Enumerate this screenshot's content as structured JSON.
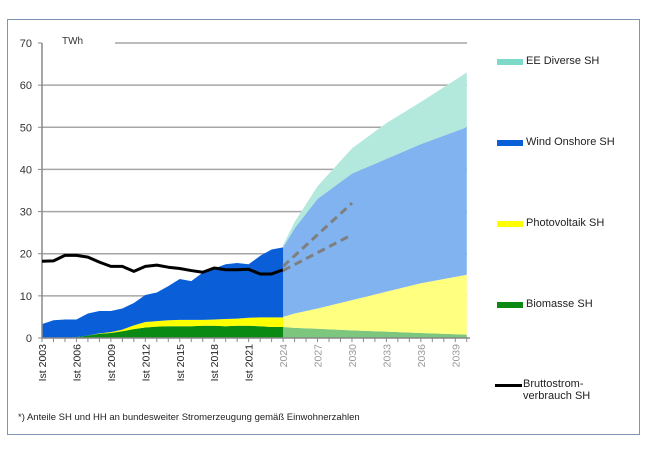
{
  "chart_data": {
    "type": "area",
    "unit_label": "TWh",
    "ylim": [
      0,
      70
    ],
    "yticks": [
      0,
      10,
      20,
      30,
      40,
      50,
      60,
      70
    ],
    "xlim": [
      2003,
      2040
    ],
    "xtick_labels_hist": [
      "Ist 2003",
      "Ist 2006",
      "Ist 2009",
      "Ist 2012",
      "Ist 2015",
      "Ist 2018",
      "Ist 2021"
    ],
    "xtick_years_hist": [
      2003,
      2006,
      2009,
      2012,
      2015,
      2018,
      2021
    ],
    "xtick_labels_proj": [
      "2024",
      "2027",
      "2030",
      "2033",
      "2036",
      "2039"
    ],
    "xtick_years_proj": [
      2024,
      2027,
      2030,
      2033,
      2036,
      2039
    ],
    "grid": true,
    "legend_position": "right",
    "historical": {
      "years": [
        2003,
        2004,
        2005,
        2006,
        2007,
        2008,
        2009,
        2010,
        2011,
        2012,
        2013,
        2014,
        2015,
        2016,
        2017,
        2018,
        2019,
        2020,
        2021,
        2022,
        2023,
        2024
      ],
      "series": [
        {
          "name": "Biomasse SH",
          "values": [
            0,
            0,
            0,
            0.2,
            0.6,
            1,
            1.2,
            1.6,
            2.1,
            2.5,
            2.7,
            2.8,
            2.8,
            2.8,
            2.9,
            2.9,
            2.8,
            2.9,
            2.9,
            2.8,
            2.6,
            2.6
          ]
        },
        {
          "name": "Photovoltaik SH",
          "values": [
            0,
            0,
            0,
            0,
            0,
            0.1,
            0.2,
            0.4,
            0.9,
            1.3,
            1.3,
            1.4,
            1.5,
            1.5,
            1.4,
            1.5,
            1.7,
            1.7,
            1.9,
            2.1,
            2.3,
            2.3
          ]
        },
        {
          "name": "Wind Onshore SH",
          "values": [
            3.3,
            4.2,
            4.4,
            4.2,
            5.2,
            5.3,
            5,
            5,
            5.3,
            6.4,
            6.8,
            8.1,
            9.7,
            9.2,
            11.2,
            12.1,
            13,
            13.2,
            12.7,
            14.6,
            16.1,
            16.6
          ]
        }
      ],
      "consumption": {
        "name": "Bruttostromverbrauch SH",
        "values": [
          18.2,
          18.3,
          19.6,
          19.6,
          19.2,
          18,
          17,
          17,
          15.8,
          17,
          17.3,
          16.8,
          16.5,
          16,
          15.6,
          16.6,
          16.2,
          16.2,
          16.3,
          15.2,
          15.2,
          16.2
        ]
      }
    },
    "projection": {
      "years": [
        2024,
        2025,
        2027,
        2030,
        2033,
        2036,
        2040
      ],
      "series": [
        {
          "name": "Biomasse SH",
          "values": [
            2.6,
            2.4,
            2.2,
            1.8,
            1.5,
            1.2,
            0.8
          ]
        },
        {
          "name": "Photovoltaik SH",
          "values": [
            2.4,
            3.4,
            4.8,
            7.2,
            9.5,
            11.8,
            14.2
          ]
        },
        {
          "name": "Wind Onshore SH",
          "values": [
            16.5,
            20.2,
            26,
            30,
            31.5,
            33,
            35
          ]
        },
        {
          "name": "EE Diverse SH",
          "values": [
            0.5,
            1.5,
            3,
            6,
            8.5,
            10,
            13
          ]
        }
      ],
      "consumption_trends": [
        {
          "x": [
            2024,
            2030
          ],
          "y": [
            17,
            32
          ]
        },
        {
          "x": [
            2024,
            2030
          ],
          "y": [
            16,
            24.5
          ]
        }
      ]
    },
    "colors": {
      "hist": {
        "Biomasse SH": "#0a8a12",
        "Photovoltaik SH": "#ffff00",
        "Wind Onshore SH": "#0a5fd9"
      },
      "proj": {
        "Biomasse SH": "#7cc77d",
        "Photovoltaik SH": "#ffff80",
        "Wind Onshore SH": "#80b3ef",
        "EE Diverse SH": "#b3e9dc"
      },
      "consumption": "#000000",
      "trend": "#7f7f7f"
    }
  },
  "legend": [
    {
      "label": "EE Diverse SH",
      "color": "#7fd9c9"
    },
    {
      "label": "Wind Onshore SH",
      "color": "#0a5fd9"
    },
    {
      "label": "Photovoltaik SH",
      "color": "#ffff00"
    },
    {
      "label": "Biomasse SH",
      "color": "#0a8a12"
    },
    {
      "label": "Bruttostrom-",
      "label2": "verbrauch SH",
      "color": "#000000"
    }
  ],
  "footnote": "*) Anteile SH und HH an bundesweiter Stromerzeugung gemäß Einwohnerzahlen"
}
